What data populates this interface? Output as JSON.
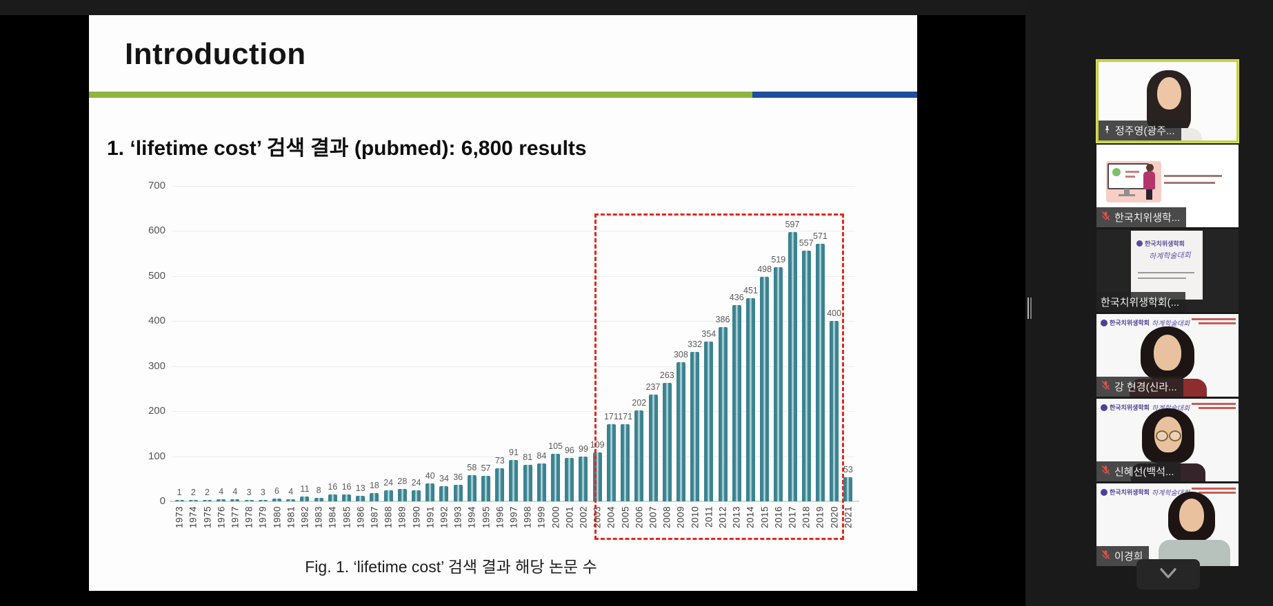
{
  "slide": {
    "title": "Introduction",
    "heading": "1. ‘lifetime cost’ 검색 결과 (pubmed): 6,800 results",
    "caption": "Fig. 1. ‘lifetime cost’ 검색 결과 해당 논문 수",
    "accent_green": "#8cb73f",
    "accent_blue": "#1f4e9e"
  },
  "chart_data": {
    "type": "bar",
    "title": "",
    "xlabel": "",
    "ylabel": "",
    "categories": [
      "1973",
      "1974",
      "1975",
      "1976",
      "1977",
      "1978",
      "1979",
      "1980",
      "1981",
      "1982",
      "1983",
      "1984",
      "1985",
      "1986",
      "1987",
      "1988",
      "1989",
      "1990",
      "1991",
      "1992",
      "1993",
      "1994",
      "1995",
      "1996",
      "1997",
      "1998",
      "1999",
      "2000",
      "2001",
      "2002",
      "2003",
      "2004",
      "2005",
      "2006",
      "2007",
      "2008",
      "2009",
      "2010",
      "2011",
      "2012",
      "2013",
      "2014",
      "2015",
      "2016",
      "2017",
      "2018",
      "2019",
      "2020",
      "2021"
    ],
    "values": [
      1,
      2,
      2,
      4,
      4,
      3,
      3,
      6,
      4,
      11,
      8,
      16,
      16,
      13,
      18,
      24,
      28,
      24,
      40,
      34,
      36,
      58,
      57,
      73,
      91,
      81,
      84,
      105,
      96,
      99,
      109,
      171,
      171,
      202,
      237,
      263,
      308,
      332,
      354,
      386,
      436,
      451,
      498,
      519,
      597,
      557,
      571,
      400,
      53
    ],
    "ylim": [
      0,
      700
    ],
    "yticks": [
      0,
      100,
      200,
      300,
      400,
      500,
      600,
      700
    ],
    "grid": true,
    "bar_color": "#3e8c99",
    "label_color": "#595959",
    "highlight_box": {
      "from": "2004",
      "to": "2020",
      "color": "#e8251f"
    }
  },
  "sidebar": {
    "banner": {
      "org": "한국치위생학회",
      "event": "하계학술대회"
    },
    "participants": [
      {
        "name": "정주영(광주...",
        "pinned": true,
        "muted": false,
        "active": true,
        "scene": "speaker"
      },
      {
        "name": "한국치위생학...",
        "pinned": false,
        "muted": true,
        "active": false,
        "scene": "cartoon-slide"
      },
      {
        "name": "한국치위생학회(...",
        "pinned": false,
        "muted": false,
        "active": false,
        "scene": "conference-doc"
      },
      {
        "name": "강 현경(신라...",
        "pinned": false,
        "muted": true,
        "active": false,
        "scene": "person-red"
      },
      {
        "name": "신혜선(백석...",
        "pinned": false,
        "muted": true,
        "active": false,
        "scene": "person-glasses"
      },
      {
        "name": "이경희",
        "pinned": false,
        "muted": true,
        "active": false,
        "scene": "person-gray"
      }
    ],
    "collapse_button_icon": "chevron-down"
  }
}
